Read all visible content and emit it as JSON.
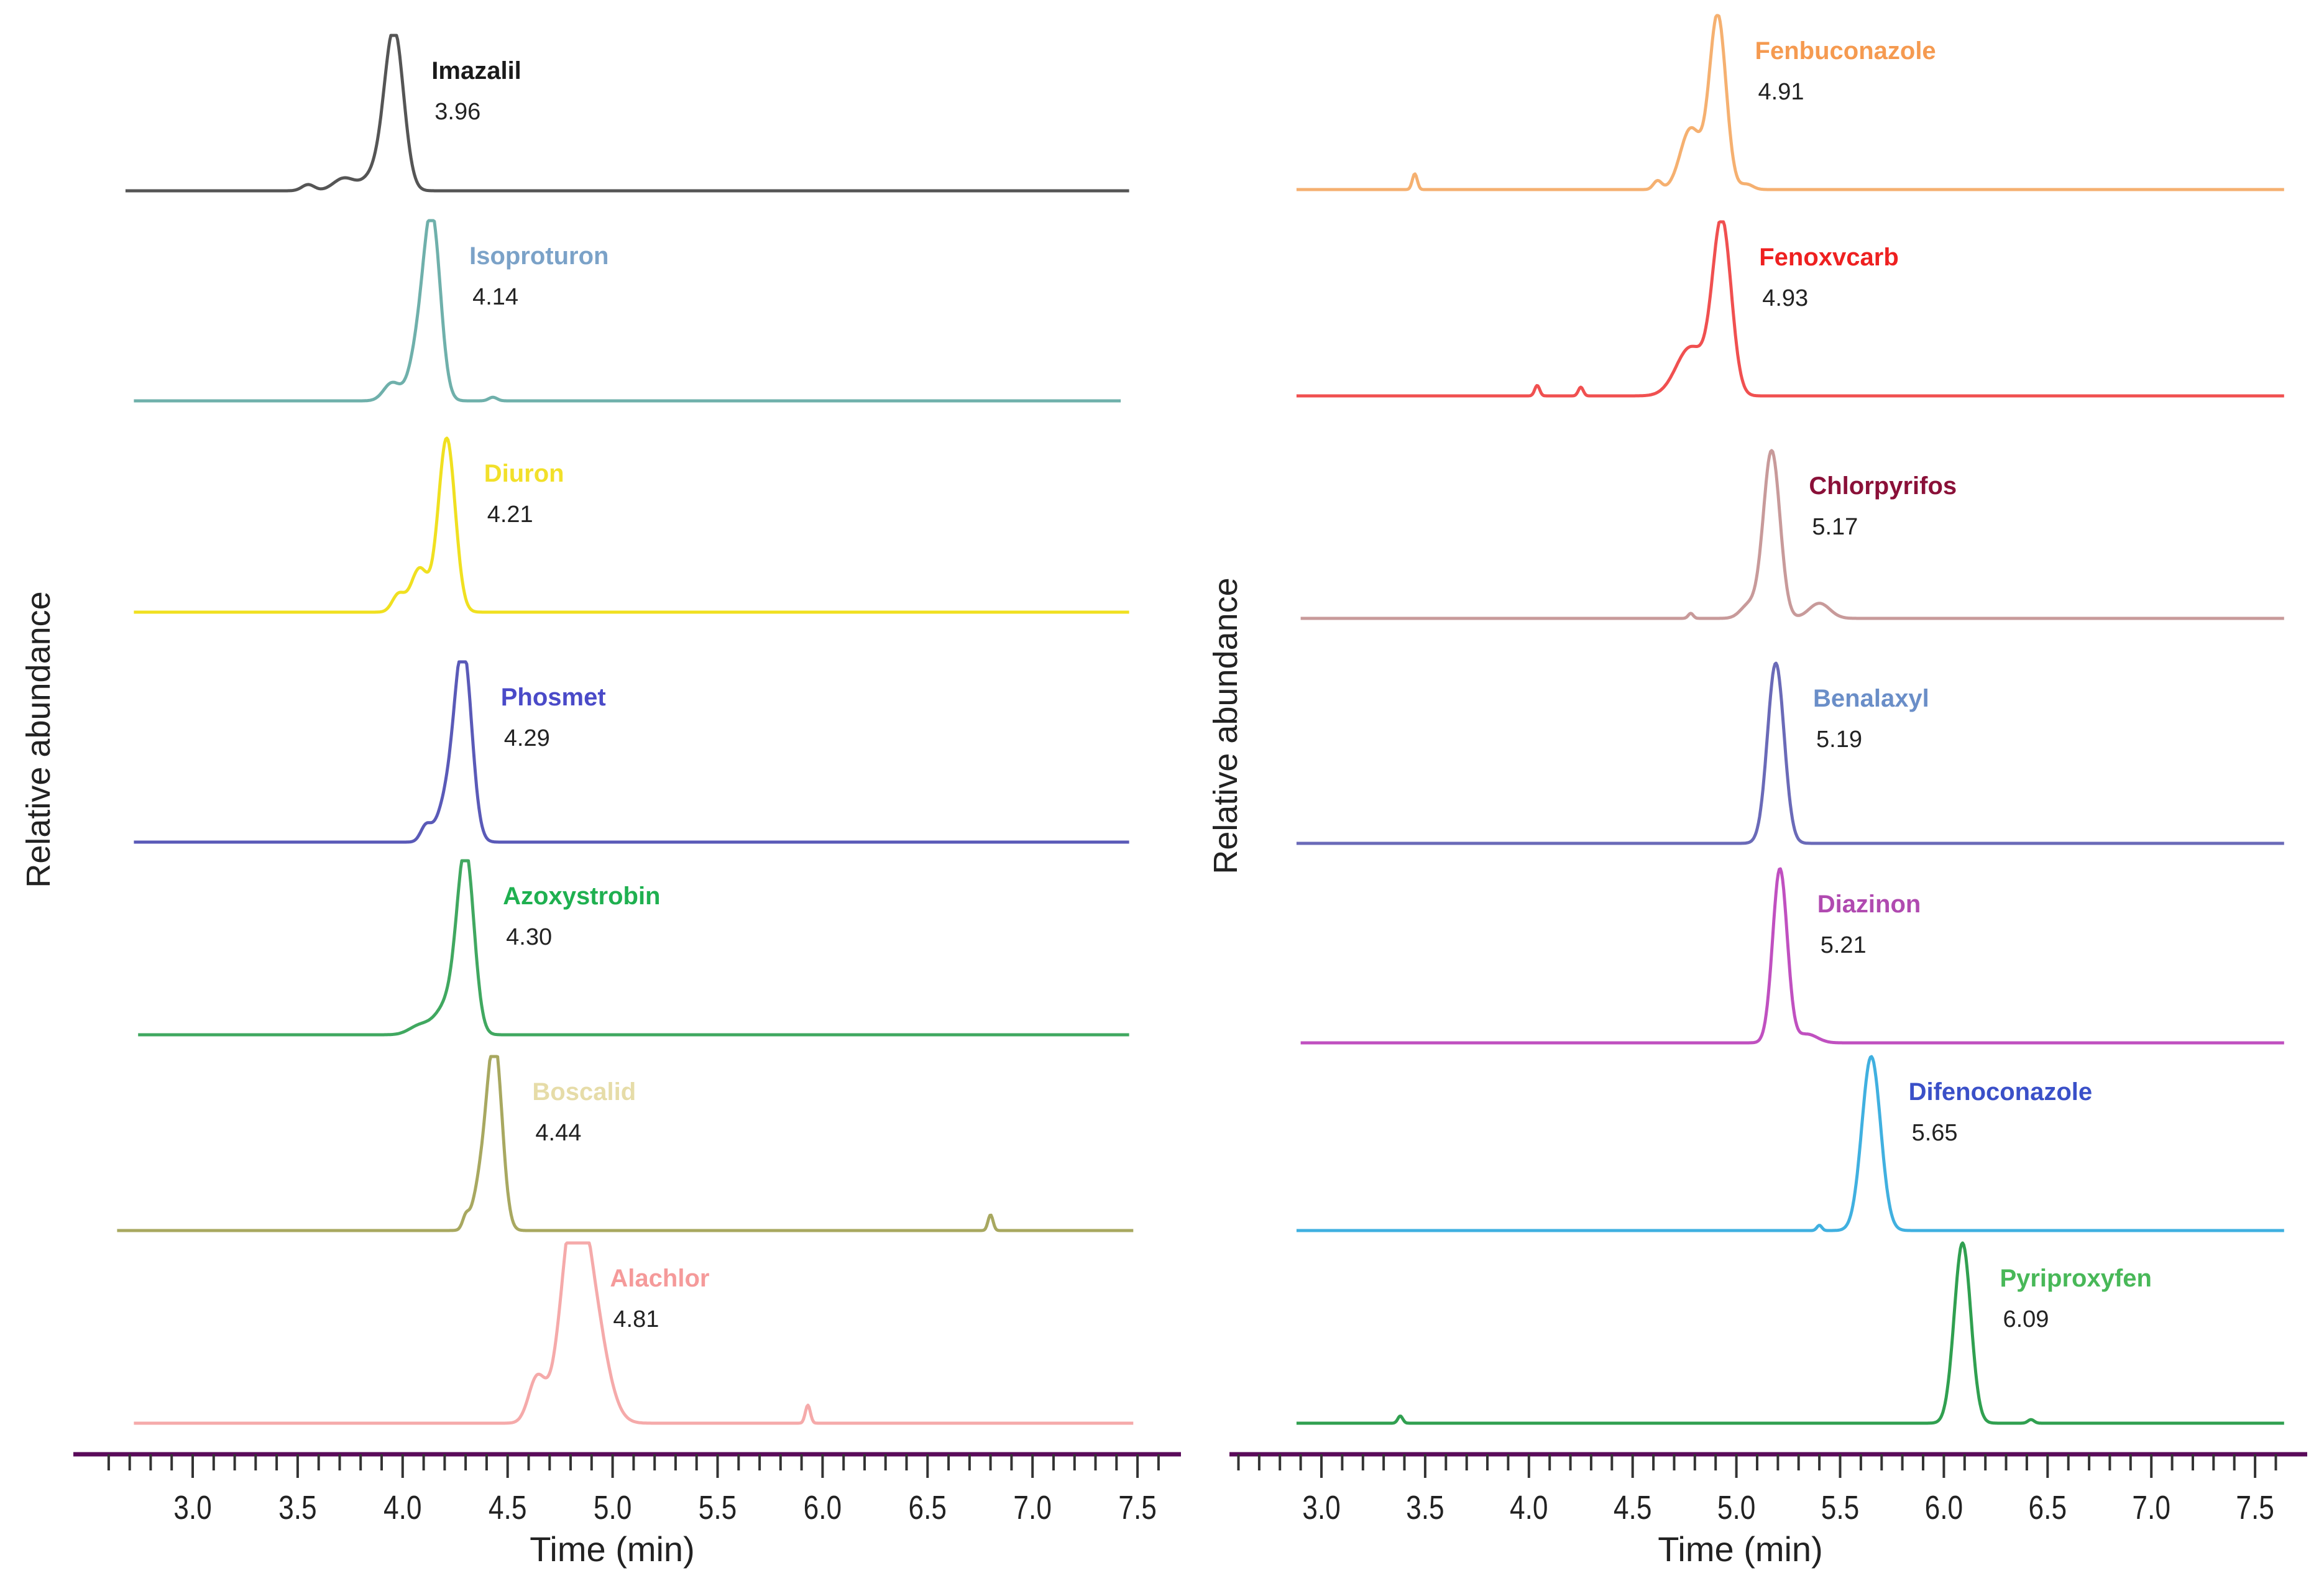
{
  "figure": {
    "panels": [
      {
        "id": "left",
        "xlabel": "Time (min)",
        "ylabel": "Relative abundance",
        "xlim": [
          2.6,
          7.6
        ],
        "xticks": [
          "3.0",
          "3.5",
          "4.0",
          "4.5",
          "5.0",
          "5.5",
          "6.0",
          "6.5",
          "7.0",
          "7.5"
        ]
      },
      {
        "id": "right",
        "xlabel": "Time (min)",
        "ylabel": "Relative abundance",
        "xlim": [
          2.6,
          7.6
        ],
        "xticks": [
          "3.0",
          "3.5",
          "4.0",
          "4.5",
          "5.0",
          "5.5",
          "6.0",
          "6.5",
          "7.0",
          "7.5"
        ]
      }
    ]
  },
  "chart_data": [
    {
      "type": "line",
      "title": "",
      "xlabel": "Time (min)",
      "ylabel": "Relative abundance",
      "xlim": [
        2.6,
        7.6
      ],
      "xticks": [
        "3.0",
        "3.5",
        "4.0",
        "4.5",
        "5.0",
        "5.5",
        "6.0",
        "6.5",
        "7.0",
        "7.5"
      ],
      "series": [
        {
          "name": "Imazalil",
          "rt": "3.96",
          "rt_value": 3.96,
          "color": "#555555",
          "label_color": "#1a1a1a",
          "x_start": 2.68,
          "x_end": 7.46,
          "width": 0.045,
          "minor": [
            {
              "x": 3.55,
              "h": 0.04,
              "w": 0.03
            },
            {
              "x": 3.72,
              "h": 0.08,
              "w": 0.05
            },
            {
              "x": 3.88,
              "h": 0.12,
              "w": 0.06
            }
          ]
        },
        {
          "name": "Isoproturon",
          "rt": "4.14",
          "rt_value": 4.14,
          "color": "#6fb0ab",
          "label_color": "#7ba2c8",
          "x_start": 2.72,
          "x_end": 7.42,
          "width": 0.04,
          "minor": [
            {
              "x": 3.95,
              "h": 0.1,
              "w": 0.04
            },
            {
              "x": 4.07,
              "h": 0.25,
              "w": 0.04
            },
            {
              "x": 4.43,
              "h": 0.02,
              "w": 0.02
            }
          ]
        },
        {
          "name": "Diuron",
          "rt": "4.21",
          "rt_value": 4.21,
          "color": "#f0e020",
          "label_color": "#f2e02a",
          "x_start": 2.72,
          "x_end": 7.46,
          "width": 0.04,
          "minor": [
            {
              "x": 3.98,
              "h": 0.1,
              "w": 0.03
            },
            {
              "x": 4.08,
              "h": 0.25,
              "w": 0.04
            }
          ]
        },
        {
          "name": "Phosmet",
          "rt": "4.29",
          "rt_value": 4.29,
          "color": "#5a5ab8",
          "label_color": "#4a4ac8",
          "x_start": 2.72,
          "x_end": 7.46,
          "width": 0.04,
          "minor": [
            {
              "x": 4.11,
              "h": 0.08,
              "w": 0.025
            },
            {
              "x": 4.22,
              "h": 0.25,
              "w": 0.05
            }
          ]
        },
        {
          "name": "Azoxystrobin",
          "rt": "4.30",
          "rt_value": 4.3,
          "color": "#40a860",
          "label_color": "#1fb050",
          "x_start": 2.74,
          "x_end": 7.46,
          "width": 0.04,
          "minor": [
            {
              "x": 4.08,
              "h": 0.05,
              "w": 0.05
            },
            {
              "x": 4.22,
              "h": 0.18,
              "w": 0.06
            }
          ]
        },
        {
          "name": "Boscalid",
          "rt": "4.44",
          "rt_value": 4.44,
          "color": "#a8a860",
          "label_color": "#e6dca8",
          "x_start": 2.64,
          "x_end": 7.48,
          "width": 0.035,
          "minor": [
            {
              "x": 4.3,
              "h": 0.06,
              "w": 0.015
            },
            {
              "x": 4.38,
              "h": 0.3,
              "w": 0.04
            },
            {
              "x": 6.8,
              "h": 0.09,
              "w": 0.012
            }
          ]
        },
        {
          "name": "Alachlor",
          "rt": "4.81",
          "rt_value": 4.81,
          "color": "#f5aaaa",
          "label_color": "#f59a9a",
          "x_start": 2.72,
          "x_end": 7.48,
          "width": 0.06,
          "minor": [
            {
              "x": 4.64,
              "h": 0.25,
              "w": 0.04
            },
            {
              "x": 4.9,
              "h": 0.6,
              "w": 0.07
            },
            {
              "x": 5.93,
              "h": 0.1,
              "w": 0.012
            }
          ]
        }
      ]
    },
    {
      "type": "line",
      "title": "",
      "xlabel": "Time (min)",
      "ylabel": "Relative abundance",
      "xlim": [
        2.6,
        7.6
      ],
      "xticks": [
        "3.0",
        "3.5",
        "4.0",
        "4.5",
        "5.0",
        "5.5",
        "6.0",
        "6.5",
        "7.0",
        "7.5"
      ],
      "series": [
        {
          "name": "Fenbuconazole",
          "rt": "4.91",
          "rt_value": 4.91,
          "color": "#f5b070",
          "label_color": "#f59a50",
          "x_start": 2.88,
          "x_end": 7.64,
          "width": 0.04,
          "minor": [
            {
              "x": 3.45,
              "h": 0.09,
              "w": 0.012
            },
            {
              "x": 4.62,
              "h": 0.05,
              "w": 0.02
            },
            {
              "x": 4.78,
              "h": 0.35,
              "w": 0.05
            },
            {
              "x": 5.05,
              "h": 0.03,
              "w": 0.03
            }
          ]
        },
        {
          "name": "Fenoxvcarb",
          "rt": "4.93",
          "rt_value": 4.93,
          "color": "#f05050",
          "label_color": "#ee2020",
          "x_start": 2.88,
          "x_end": 7.64,
          "width": 0.045,
          "minor": [
            {
              "x": 4.04,
              "h": 0.06,
              "w": 0.012
            },
            {
              "x": 4.25,
              "h": 0.05,
              "w": 0.012
            },
            {
              "x": 4.78,
              "h": 0.28,
              "w": 0.07
            }
          ]
        },
        {
          "name": "Chlorpyrifos",
          "rt": "5.17",
          "rt_value": 5.17,
          "color": "#c89a9a",
          "label_color": "#8a1038",
          "x_start": 2.9,
          "x_end": 7.64,
          "width": 0.04,
          "minor": [
            {
              "x": 4.78,
              "h": 0.03,
              "w": 0.012
            },
            {
              "x": 5.06,
              "h": 0.08,
              "w": 0.04
            },
            {
              "x": 5.4,
              "h": 0.09,
              "w": 0.05
            }
          ]
        },
        {
          "name": "Benalaxyl",
          "rt": "5.19",
          "rt_value": 5.19,
          "color": "#6a6ab8",
          "label_color": "#6a8ec8",
          "x_start": 2.88,
          "x_end": 7.64,
          "width": 0.04,
          "minor": []
        },
        {
          "name": "Diazinon",
          "rt": "5.21",
          "rt_value": 5.21,
          "color": "#c050c0",
          "label_color": "#b04ab0",
          "x_start": 2.9,
          "x_end": 7.64,
          "width": 0.035,
          "minor": [
            {
              "x": 5.34,
              "h": 0.05,
              "w": 0.05
            }
          ]
        },
        {
          "name": "Difenoconazole",
          "rt": "5.65",
          "rt_value": 5.65,
          "color": "#40b0e0",
          "label_color": "#3a50c8",
          "x_start": 2.88,
          "x_end": 7.64,
          "width": 0.045,
          "minor": [
            {
              "x": 5.4,
              "h": 0.03,
              "w": 0.012
            }
          ]
        },
        {
          "name": "Pyriproxyfen",
          "rt": "6.09",
          "rt_value": 6.09,
          "color": "#30a050",
          "label_color": "#48b858",
          "x_start": 2.88,
          "x_end": 7.64,
          "width": 0.04,
          "minor": [
            {
              "x": 3.38,
              "h": 0.04,
              "w": 0.012
            },
            {
              "x": 6.42,
              "h": 0.02,
              "w": 0.015
            }
          ]
        }
      ]
    }
  ]
}
